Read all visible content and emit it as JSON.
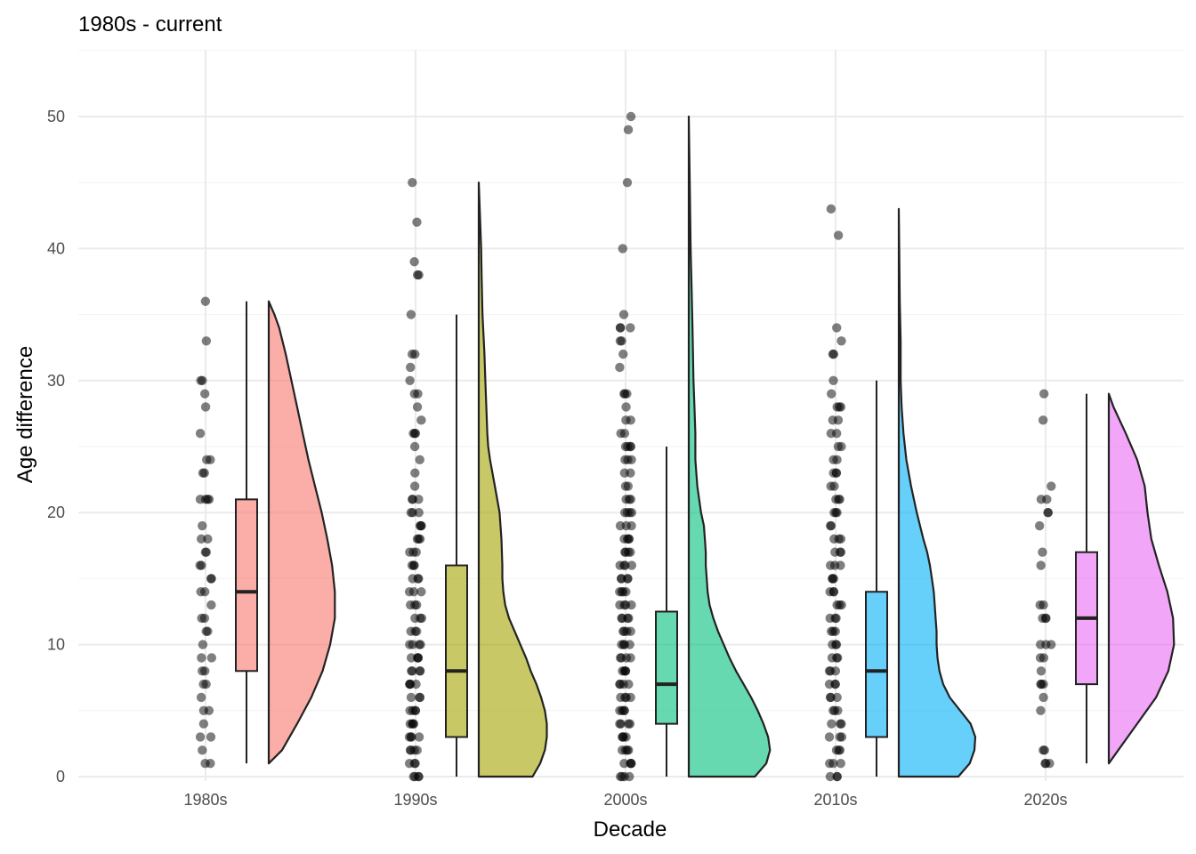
{
  "chart_data": {
    "type": "raincloud",
    "title": "1980s - current",
    "xlabel": "Decade",
    "ylabel": "Age difference",
    "categories": [
      "1980s",
      "1990s",
      "2000s",
      "2010s",
      "2020s"
    ],
    "ylim": [
      -1,
      55
    ],
    "y_ticks": [
      0,
      10,
      20,
      30,
      40,
      50
    ],
    "grid": true,
    "colors": [
      "#f8766d",
      "#a3a500",
      "#00bf7d",
      "#00b0f6",
      "#e76bf3"
    ],
    "box_stats": [
      {
        "category": "1980s",
        "min": 1,
        "q1": 8,
        "median": 14,
        "q3": 21,
        "max": 36
      },
      {
        "category": "1990s",
        "min": 0,
        "q1": 3,
        "median": 8,
        "q3": 16,
        "max": 35
      },
      {
        "category": "2000s",
        "min": 0,
        "q1": 4,
        "median": 7,
        "q3": 12.5,
        "max": 25
      },
      {
        "category": "2010s",
        "min": 0,
        "q1": 3,
        "median": 8,
        "q3": 14,
        "max": 30
      },
      {
        "category": "2020s",
        "min": 1,
        "q1": 7,
        "median": 12,
        "q3": 17,
        "max": 29
      }
    ],
    "density": [
      {
        "category": "1980s",
        "y": [
          1,
          2,
          4,
          6,
          8,
          10,
          12,
          14,
          16,
          18,
          20,
          22,
          24,
          26,
          28,
          30,
          32,
          34,
          35,
          36
        ],
        "w": [
          0.0,
          0.14,
          0.3,
          0.45,
          0.57,
          0.65,
          0.7,
          0.7,
          0.67,
          0.62,
          0.56,
          0.49,
          0.42,
          0.36,
          0.3,
          0.24,
          0.18,
          0.11,
          0.06,
          0.0
        ]
      },
      {
        "category": "1990s",
        "y": [
          0,
          1,
          2,
          3,
          4,
          5,
          6,
          7,
          8,
          9,
          10,
          11,
          12,
          13,
          14,
          15,
          16,
          18,
          20,
          22,
          24,
          25,
          26,
          28,
          30,
          32,
          35,
          38,
          40,
          43,
          45
        ],
        "w": [
          0.57,
          0.65,
          0.7,
          0.72,
          0.72,
          0.7,
          0.66,
          0.61,
          0.55,
          0.5,
          0.44,
          0.38,
          0.32,
          0.28,
          0.26,
          0.25,
          0.25,
          0.24,
          0.22,
          0.17,
          0.12,
          0.1,
          0.09,
          0.08,
          0.07,
          0.06,
          0.04,
          0.03,
          0.025,
          0.01,
          0.0
        ]
      },
      {
        "category": "2000s",
        "y": [
          0,
          1,
          2,
          3,
          4,
          5,
          6,
          7,
          8,
          9,
          10,
          11,
          12,
          13,
          14,
          15,
          16,
          17,
          18,
          19,
          20,
          22,
          24,
          26,
          28,
          30,
          34,
          37,
          40,
          45,
          50
        ],
        "w": [
          0.7,
          0.82,
          0.86,
          0.84,
          0.79,
          0.73,
          0.66,
          0.58,
          0.5,
          0.43,
          0.37,
          0.31,
          0.26,
          0.22,
          0.2,
          0.19,
          0.18,
          0.18,
          0.17,
          0.16,
          0.13,
          0.09,
          0.07,
          0.07,
          0.06,
          0.05,
          0.04,
          0.03,
          0.02,
          0.01,
          0.0
        ]
      },
      {
        "category": "2010s",
        "y": [
          0,
          1,
          2,
          3,
          4,
          5,
          6,
          7,
          8,
          9,
          10,
          11,
          12,
          13,
          14,
          15,
          16,
          17,
          18,
          20,
          22,
          24,
          26,
          28,
          30,
          33,
          36,
          40,
          43
        ],
        "w": [
          0.63,
          0.75,
          0.8,
          0.81,
          0.76,
          0.65,
          0.54,
          0.47,
          0.43,
          0.41,
          0.4,
          0.4,
          0.39,
          0.38,
          0.37,
          0.35,
          0.33,
          0.3,
          0.26,
          0.19,
          0.13,
          0.08,
          0.05,
          0.03,
          0.02,
          0.02,
          0.01,
          0.005,
          0.0
        ]
      },
      {
        "category": "2020s",
        "y": [
          1,
          2,
          4,
          6,
          8,
          10,
          12,
          14,
          16,
          18,
          20,
          22,
          24,
          26,
          28,
          29
        ],
        "w": [
          0.0,
          0.1,
          0.3,
          0.5,
          0.63,
          0.69,
          0.68,
          0.62,
          0.53,
          0.45,
          0.41,
          0.38,
          0.3,
          0.18,
          0.05,
          0.0
        ]
      }
    ],
    "points": [
      {
        "category": "1980s",
        "y": [
          36,
          33,
          30,
          30,
          29,
          28,
          26,
          24,
          24,
          23,
          23,
          21,
          21,
          21,
          21,
          19,
          18,
          18,
          17,
          17,
          16,
          16,
          15,
          15,
          14,
          14,
          13,
          12,
          12,
          11,
          11,
          10,
          9,
          9,
          8,
          8,
          7,
          7,
          6,
          5,
          5,
          4,
          3,
          3,
          2,
          1,
          1
        ]
      },
      {
        "category": "1990s",
        "y": [
          45,
          42,
          39,
          38,
          38,
          35,
          32,
          32,
          31,
          30,
          29,
          29,
          28,
          27,
          26,
          26,
          26,
          25,
          24,
          23,
          22,
          21,
          21,
          21,
          20,
          20,
          20,
          19,
          19,
          19,
          18,
          18,
          18,
          17,
          17,
          17,
          16,
          16,
          16,
          15,
          15,
          15,
          14,
          14,
          14,
          13,
          13,
          13,
          12,
          12,
          12,
          11,
          11,
          11,
          10,
          10,
          10,
          10,
          9,
          9,
          9,
          9,
          8,
          8,
          8,
          8,
          7,
          7,
          7,
          7,
          6,
          6,
          6,
          5,
          5,
          5,
          5,
          4,
          4,
          4,
          4,
          3,
          3,
          3,
          3,
          2,
          2,
          2,
          2,
          1,
          1,
          1,
          0,
          0,
          0,
          0
        ]
      },
      {
        "category": "2000s",
        "y": [
          50,
          49,
          45,
          40,
          35,
          34,
          34,
          34,
          33,
          33,
          32,
          31,
          29,
          29,
          29,
          28,
          27,
          27,
          26,
          26,
          25,
          25,
          25,
          25,
          24,
          24,
          24,
          23,
          23,
          22,
          22,
          21,
          21,
          21,
          20,
          20,
          20,
          20,
          19,
          19,
          19,
          18,
          18,
          18,
          18,
          17,
          17,
          17,
          17,
          16,
          16,
          16,
          16,
          15,
          15,
          15,
          15,
          14,
          14,
          14,
          14,
          13,
          13,
          13,
          13,
          12,
          12,
          12,
          12,
          11,
          11,
          11,
          11,
          10,
          10,
          10,
          10,
          9,
          9,
          9,
          9,
          8,
          8,
          8,
          8,
          7,
          7,
          7,
          7,
          6,
          6,
          6,
          6,
          5,
          5,
          5,
          5,
          4,
          4,
          4,
          4,
          3,
          3,
          3,
          3,
          2,
          2,
          2,
          2,
          1,
          1,
          1,
          1,
          0,
          0,
          0,
          0
        ]
      },
      {
        "category": "2010s",
        "y": [
          43,
          41,
          34,
          33,
          32,
          32,
          30,
          29,
          28,
          28,
          28,
          27,
          27,
          26,
          26,
          25,
          25,
          24,
          24,
          23,
          23,
          23,
          22,
          22,
          21,
          21,
          21,
          20,
          20,
          20,
          19,
          19,
          18,
          18,
          18,
          17,
          17,
          17,
          16,
          16,
          16,
          15,
          15,
          15,
          14,
          14,
          14,
          13,
          13,
          13,
          12,
          12,
          12,
          11,
          11,
          11,
          10,
          10,
          10,
          9,
          9,
          9,
          8,
          8,
          8,
          7,
          7,
          7,
          6,
          6,
          6,
          5,
          5,
          5,
          4,
          4,
          4,
          3,
          3,
          3,
          2,
          2,
          2,
          1,
          1,
          1,
          0,
          0,
          0
        ]
      },
      {
        "category": "2020s",
        "y": [
          29,
          27,
          22,
          21,
          21,
          20,
          20,
          19,
          17,
          16,
          13,
          13,
          12,
          12,
          12,
          10,
          10,
          10,
          9,
          9,
          8,
          7,
          7,
          7,
          6,
          5,
          2,
          2,
          1,
          1,
          1
        ]
      }
    ]
  }
}
